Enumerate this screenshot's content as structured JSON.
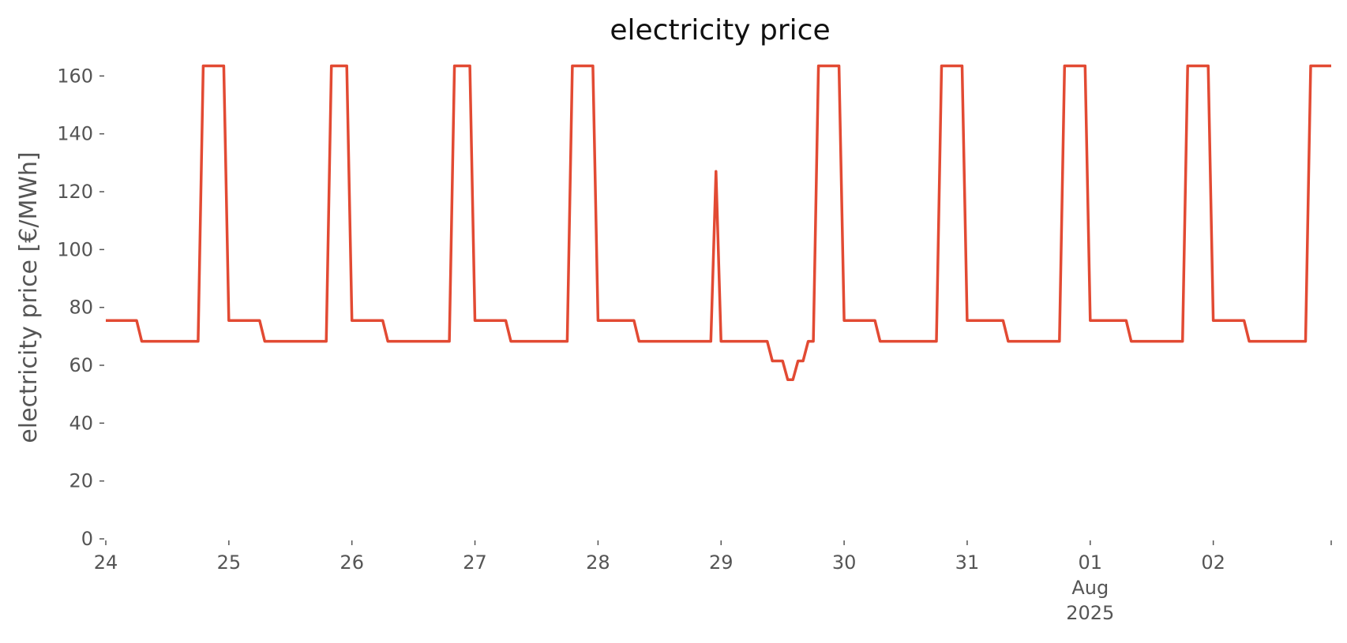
{
  "chart_data": {
    "type": "line",
    "title": "electricity price",
    "xlabel": "",
    "ylabel": "electricity price [€/MWh]",
    "ylim": [
      0,
      160
    ],
    "yticks": [
      0,
      20,
      40,
      60,
      80,
      100,
      120,
      140,
      160
    ],
    "xlim": [
      "2025-07-24T00:00",
      "2025-08-02T23:00"
    ],
    "xticks": [
      {
        "x": "2025-07-24T00:00",
        "label": "24"
      },
      {
        "x": "2025-07-25T00:00",
        "label": "25"
      },
      {
        "x": "2025-07-26T00:00",
        "label": "26"
      },
      {
        "x": "2025-07-27T00:00",
        "label": "27"
      },
      {
        "x": "2025-07-28T00:00",
        "label": "28"
      },
      {
        "x": "2025-07-29T00:00",
        "label": "29"
      },
      {
        "x": "2025-07-30T00:00",
        "label": "30"
      },
      {
        "x": "2025-07-31T00:00",
        "label": "31"
      },
      {
        "x": "2025-08-01T00:00",
        "label": "01\nAug\n2025"
      },
      {
        "x": "2025-08-02T00:00",
        "label": "02"
      }
    ],
    "grid": false,
    "color": "#e24a33",
    "series": [
      {
        "points": [
          [
            "2025-07-24T00:00",
            75.5
          ],
          [
            "2025-07-24T06:00",
            75.5
          ],
          [
            "2025-07-24T07:00",
            68.3
          ],
          [
            "2025-07-24T18:00",
            68.3
          ],
          [
            "2025-07-24T19:00",
            163.5
          ],
          [
            "2025-07-24T23:00",
            163.5
          ],
          [
            "2025-07-25T00:00",
            75.5
          ],
          [
            "2025-07-25T06:00",
            75.5
          ],
          [
            "2025-07-25T07:00",
            68.3
          ],
          [
            "2025-07-25T19:00",
            68.3
          ],
          [
            "2025-07-25T20:00",
            163.5
          ],
          [
            "2025-07-25T23:00",
            163.5
          ],
          [
            "2025-07-26T00:00",
            75.5
          ],
          [
            "2025-07-26T06:00",
            75.5
          ],
          [
            "2025-07-26T07:00",
            68.3
          ],
          [
            "2025-07-26T19:00",
            68.3
          ],
          [
            "2025-07-26T20:00",
            163.5
          ],
          [
            "2025-07-26T23:00",
            163.5
          ],
          [
            "2025-07-27T00:00",
            75.5
          ],
          [
            "2025-07-27T06:00",
            75.5
          ],
          [
            "2025-07-27T07:00",
            68.3
          ],
          [
            "2025-07-27T18:00",
            68.3
          ],
          [
            "2025-07-27T19:00",
            163.5
          ],
          [
            "2025-07-27T23:00",
            163.5
          ],
          [
            "2025-07-28T00:00",
            75.5
          ],
          [
            "2025-07-28T07:00",
            75.5
          ],
          [
            "2025-07-28T08:00",
            68.3
          ],
          [
            "2025-07-28T22:00",
            68.3
          ],
          [
            "2025-07-28T23:00",
            127.0
          ],
          [
            "2025-07-29T00:00",
            68.3
          ],
          [
            "2025-07-29T09:00",
            68.3
          ],
          [
            "2025-07-29T10:00",
            61.5
          ],
          [
            "2025-07-29T12:00",
            61.5
          ],
          [
            "2025-07-29T13:00",
            55.0
          ],
          [
            "2025-07-29T14:00",
            55.0
          ],
          [
            "2025-07-29T15:00",
            61.5
          ],
          [
            "2025-07-29T16:00",
            61.5
          ],
          [
            "2025-07-29T17:00",
            68.3
          ],
          [
            "2025-07-29T18:00",
            68.3
          ],
          [
            "2025-07-29T19:00",
            163.5
          ],
          [
            "2025-07-29T23:00",
            163.5
          ],
          [
            "2025-07-30T00:00",
            75.5
          ],
          [
            "2025-07-30T06:00",
            75.5
          ],
          [
            "2025-07-30T07:00",
            68.3
          ],
          [
            "2025-07-30T18:00",
            68.3
          ],
          [
            "2025-07-30T19:00",
            163.5
          ],
          [
            "2025-07-30T23:00",
            163.5
          ],
          [
            "2025-07-31T00:00",
            75.5
          ],
          [
            "2025-07-31T07:00",
            75.5
          ],
          [
            "2025-07-31T08:00",
            68.3
          ],
          [
            "2025-07-31T18:00",
            68.3
          ],
          [
            "2025-07-31T19:00",
            163.5
          ],
          [
            "2025-07-31T23:00",
            163.5
          ],
          [
            "2025-08-01T00:00",
            75.5
          ],
          [
            "2025-08-01T07:00",
            75.5
          ],
          [
            "2025-08-01T08:00",
            68.3
          ],
          [
            "2025-08-01T18:00",
            68.3
          ],
          [
            "2025-08-01T19:00",
            163.5
          ],
          [
            "2025-08-01T23:00",
            163.5
          ],
          [
            "2025-08-02T00:00",
            75.5
          ],
          [
            "2025-08-02T06:00",
            75.5
          ],
          [
            "2025-08-02T07:00",
            68.3
          ],
          [
            "2025-08-02T18:00",
            68.3
          ],
          [
            "2025-08-02T19:00",
            163.5
          ],
          [
            "2025-08-02T23:00",
            163.5
          ]
        ]
      }
    ]
  }
}
